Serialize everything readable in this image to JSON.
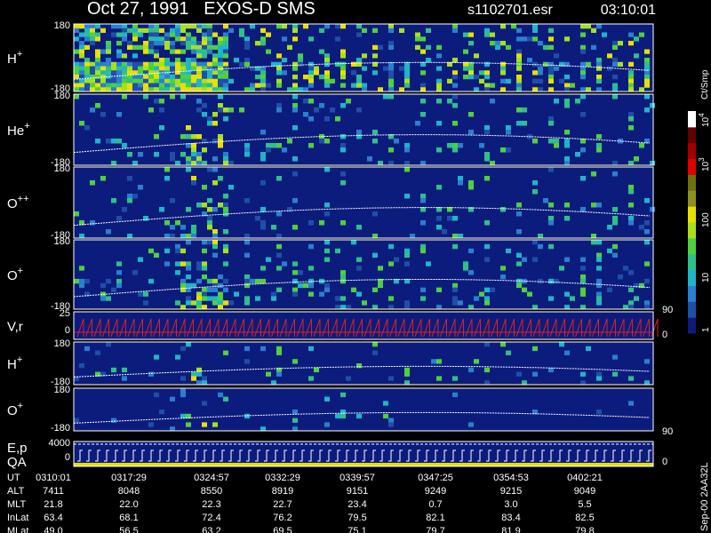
{
  "header": {
    "title": "Oct 27, 1991   EXOS-D SMS",
    "file": "s1102701.esr",
    "time": "03:10:01"
  },
  "panels": [
    {
      "label": "H",
      "sup": "+",
      "top": "180",
      "bottom": "-180"
    },
    {
      "label": "He",
      "sup": "+",
      "top": "180",
      "bottom": "-180"
    },
    {
      "label": "O",
      "sup": "++",
      "top": "180",
      "bottom": "-180"
    },
    {
      "label": "O",
      "sup": "+",
      "top": "180",
      "bottom": "-180",
      "right": "90"
    },
    {
      "label": "V,r",
      "top": "25",
      "bottom": "0",
      "right": "0"
    },
    {
      "label": "H",
      "sup": "+",
      "top": "180",
      "bottom": "-180"
    },
    {
      "label": "O",
      "sup": "+",
      "top": "180",
      "bottom": "-180",
      "right": "90"
    },
    {
      "label": "E,p",
      "label2": "QA",
      "top": "4000",
      "bottom": "0",
      "right": "0"
    }
  ],
  "colorbar": {
    "title": "Ct/Smp",
    "ticks": [
      {
        "base": "10",
        "exp": "4"
      },
      {
        "base": "10",
        "exp": "3"
      },
      {
        "base": "100"
      },
      {
        "base": "10"
      },
      {
        "base": "1"
      }
    ]
  },
  "ephemeris": [
    {
      "label": "UT",
      "values": [
        "0310:01",
        "0317:29",
        "0324:57",
        "0332:29",
        "0339:57",
        "0347:25",
        "0354:53",
        "0402:21"
      ]
    },
    {
      "label": "ALT",
      "values": [
        "7411",
        "8048",
        "8550",
        "8919",
        "9151",
        "9249",
        "9215",
        "9049"
      ]
    },
    {
      "label": "MLT",
      "values": [
        "21.8",
        "22.0",
        "22.3",
        "22.7",
        "23.4",
        "0.7",
        "3.0",
        "5.5"
      ]
    },
    {
      "label": "InLat",
      "values": [
        "63.4",
        "68.1",
        "72.4",
        "76.2",
        "79.5",
        "82.1",
        "83.4",
        "82.5"
      ]
    },
    {
      "label": "MLat",
      "values": [
        "49.0",
        "56.5",
        "63.2",
        "69.5",
        "75.1",
        "79.7",
        "81.9",
        "79.8"
      ]
    }
  ],
  "footer": "Sep-00 2AA32L"
}
